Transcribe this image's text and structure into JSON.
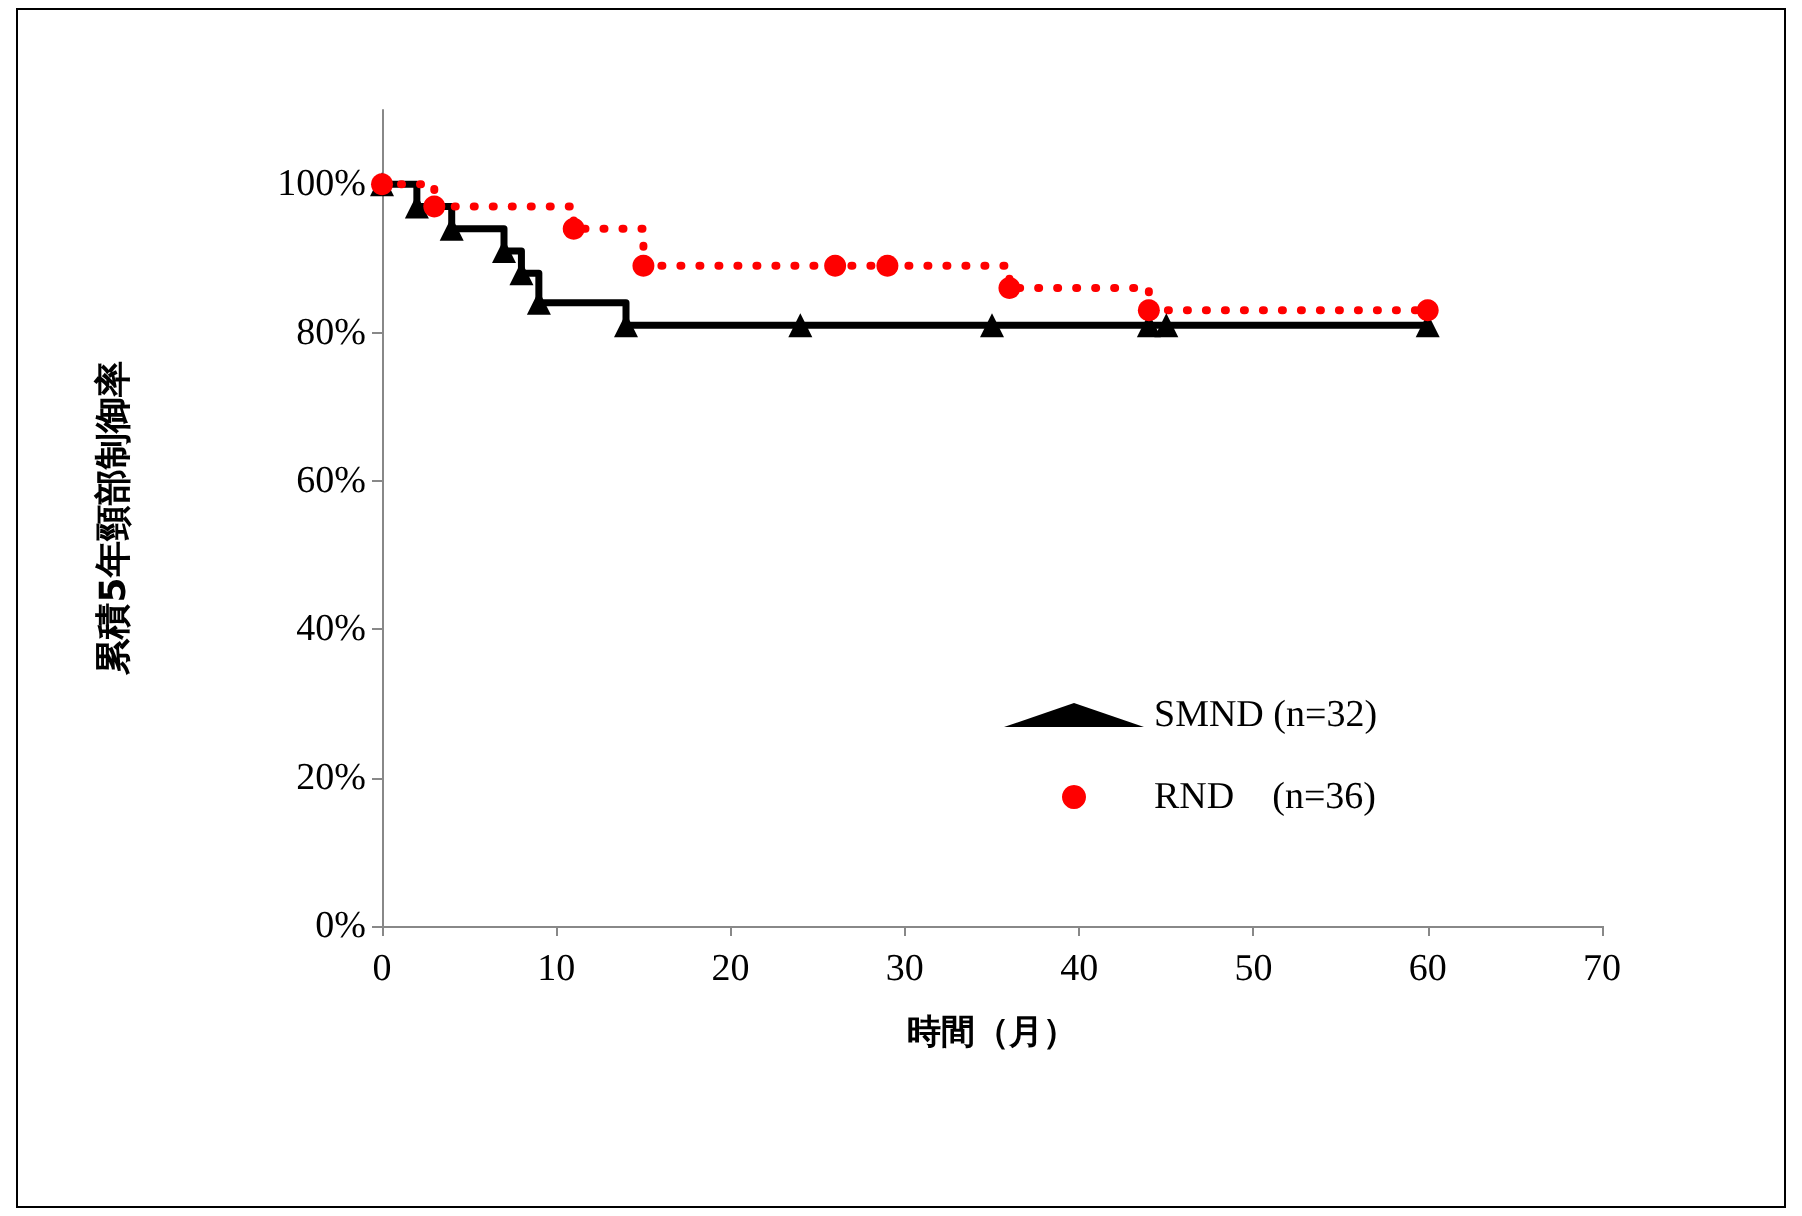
{
  "chart_data": {
    "type": "step",
    "xlabel": "時間（月）",
    "ylabel": "累積5年頸部制御率",
    "xlim": [
      0,
      70
    ],
    "xticks": [
      0,
      10,
      20,
      30,
      40,
      50,
      60,
      70
    ],
    "ylim": [
      0,
      110
    ],
    "yticks": [
      {
        "value": 0,
        "label": "0%"
      },
      {
        "value": 20,
        "label": "20%"
      },
      {
        "value": 40,
        "label": "40%"
      },
      {
        "value": 60,
        "label": "60%"
      },
      {
        "value": 80,
        "label": "80%"
      },
      {
        "value": 100,
        "label": "100%"
      }
    ],
    "grid": false,
    "legend": "right",
    "series": [
      {
        "name": "SMND (n=32)",
        "color": "#000000",
        "marker": "triangle",
        "line_style": "solid",
        "x": [
          0,
          2,
          4,
          7,
          8,
          9,
          14,
          24,
          35,
          44,
          45,
          60
        ],
        "values": [
          100,
          97,
          94,
          91,
          88,
          84,
          81,
          81,
          81,
          81,
          81,
          81
        ]
      },
      {
        "name": "RND　(n=36)",
        "color": "#ff0000",
        "marker": "circle",
        "line_style": "dotted",
        "x": [
          0,
          3,
          11,
          15,
          26,
          29,
          36,
          44,
          60
        ],
        "values": [
          100,
          97,
          94,
          89,
          89,
          89,
          86,
          83,
          83
        ]
      }
    ]
  }
}
